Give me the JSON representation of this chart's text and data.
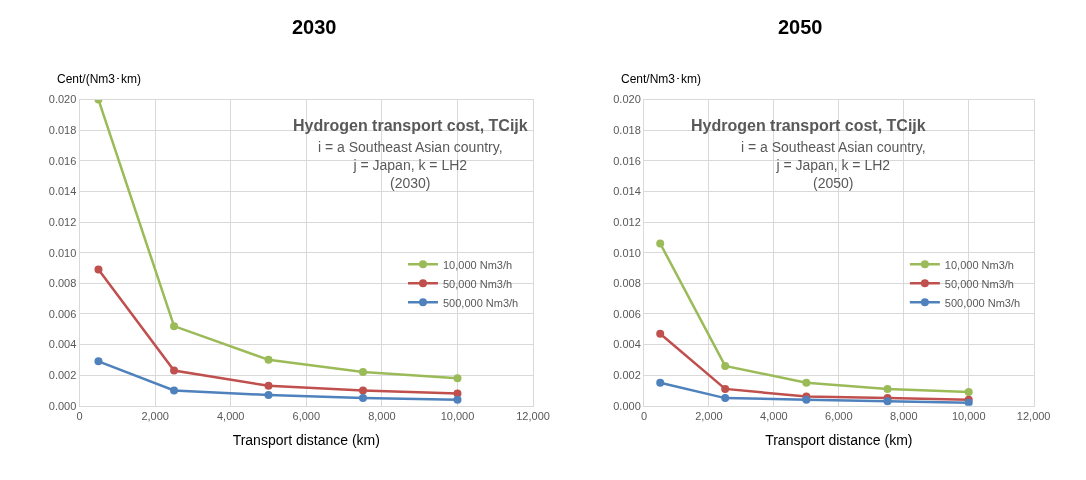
{
  "chart_data": [
    {
      "type": "line",
      "title": "2030",
      "ylabel": "Cent/(Nm3･km)",
      "xlabel": "Transport distance (km)",
      "annotations": [
        "Hydrogen transport cost, TCijk",
        "i = a Southeast Asian country,\nj = Japan, k = LH2\n(2030)"
      ],
      "x": [
        500,
        2500,
        5000,
        7500,
        10000
      ],
      "series": [
        {
          "name": "10,000 Nm3/h",
          "color": "#9bbb59",
          "values": [
            0.02,
            0.0052,
            0.003,
            0.0022,
            0.0018
          ]
        },
        {
          "name": "50,000 Nm3/h",
          "color": "#c0504d",
          "values": [
            0.0089,
            0.0023,
            0.0013,
            0.001,
            0.0008
          ]
        },
        {
          "name": "500,000 Nm3/h",
          "color": "#4f81bd",
          "values": [
            0.0029,
            0.001,
            0.0007,
            0.0005,
            0.0004
          ]
        }
      ],
      "xlim": [
        0,
        12000
      ],
      "xticks": [
        {
          "value": 0,
          "label": "0"
        },
        {
          "value": 2000,
          "label": "2,000"
        },
        {
          "value": 4000,
          "label": "4,000"
        },
        {
          "value": 6000,
          "label": "6,000"
        },
        {
          "value": 8000,
          "label": "8,000"
        },
        {
          "value": 10000,
          "label": "10,000"
        },
        {
          "value": 12000,
          "label": "12,000"
        }
      ],
      "ylim": [
        0,
        0.02
      ],
      "yticks": [
        {
          "value": 0,
          "label": "0.000"
        },
        {
          "value": 0.002,
          "label": "0.002"
        },
        {
          "value": 0.004,
          "label": "0.004"
        },
        {
          "value": 0.006,
          "label": "0.006"
        },
        {
          "value": 0.008,
          "label": "0.008"
        },
        {
          "value": 0.01,
          "label": "0.010"
        },
        {
          "value": 0.012,
          "label": "0.012"
        },
        {
          "value": 0.014,
          "label": "0.014"
        },
        {
          "value": 0.016,
          "label": "0.016"
        },
        {
          "value": 0.018,
          "label": "0.018"
        },
        {
          "value": 0.02,
          "label": "0.020"
        }
      ],
      "grid": true,
      "legend": "right",
      "marker": "circle",
      "line_style": "solid"
    },
    {
      "type": "line",
      "title": "2050",
      "ylabel": "Cent/Nm3･km)",
      "xlabel": "Transport distance (km)",
      "annotations": [
        "Hydrogen transport cost, TCijk",
        "i = a Southeast Asian country,\nj = Japan, k = LH2\n(2050)"
      ],
      "x": [
        500,
        2500,
        5000,
        7500,
        10000
      ],
      "series": [
        {
          "name": "10,000 Nm3/h",
          "color": "#9bbb59",
          "values": [
            0.0106,
            0.0026,
            0.0015,
            0.0011,
            0.0009
          ]
        },
        {
          "name": "50,000 Nm3/h",
          "color": "#c0504d",
          "values": [
            0.0047,
            0.0011,
            0.0006,
            0.0005,
            0.0004
          ]
        },
        {
          "name": "500,000 Nm3/h",
          "color": "#4f81bd",
          "values": [
            0.0015,
            0.0005,
            0.0004,
            0.0003,
            0.0002
          ]
        }
      ],
      "xlim": [
        0,
        12000
      ],
      "xticks": [
        {
          "value": 0,
          "label": "0"
        },
        {
          "value": 2000,
          "label": "2,000"
        },
        {
          "value": 4000,
          "label": "4,000"
        },
        {
          "value": 6000,
          "label": "6,000"
        },
        {
          "value": 8000,
          "label": "8,000"
        },
        {
          "value": 10000,
          "label": "10,000"
        },
        {
          "value": 12000,
          "label": "12,000"
        }
      ],
      "ylim": [
        0,
        0.02
      ],
      "yticks": [
        {
          "value": 0,
          "label": "0.000"
        },
        {
          "value": 0.002,
          "label": "0.002"
        },
        {
          "value": 0.004,
          "label": "0.004"
        },
        {
          "value": 0.006,
          "label": "0.006"
        },
        {
          "value": 0.008,
          "label": "0.008"
        },
        {
          "value": 0.01,
          "label": "0.010"
        },
        {
          "value": 0.012,
          "label": "0.012"
        },
        {
          "value": 0.014,
          "label": "0.014"
        },
        {
          "value": 0.016,
          "label": "0.016"
        },
        {
          "value": 0.018,
          "label": "0.018"
        },
        {
          "value": 0.02,
          "label": "0.020"
        }
      ],
      "grid": true,
      "legend": "right",
      "marker": "circle",
      "line_style": "solid"
    }
  ]
}
